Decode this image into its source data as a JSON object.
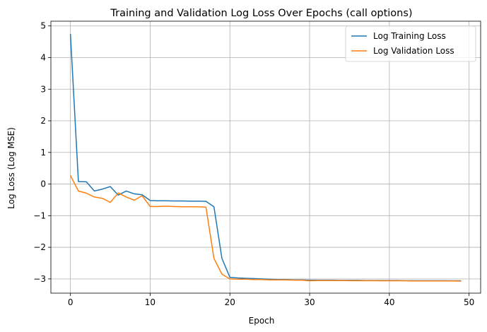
{
  "chart_data": {
    "type": "line",
    "title": "Training and Validation Log Loss Over Epochs (call options)",
    "xlabel": "Epoch",
    "ylabel": "Log Loss (Log MSE)",
    "xlim": [
      -2.45,
      51.45
    ],
    "ylim": [
      -3.45,
      5.15
    ],
    "xticks": [
      0,
      10,
      20,
      30,
      40,
      50
    ],
    "yticks": [
      -3,
      -2,
      -1,
      0,
      1,
      2,
      3,
      4,
      5
    ],
    "grid": true,
    "legend_position": "top-right",
    "x": [
      0,
      1,
      2,
      3,
      4,
      5,
      6,
      7,
      8,
      9,
      10,
      11,
      12,
      13,
      14,
      15,
      16,
      17,
      18,
      19,
      20,
      21,
      22,
      23,
      24,
      25,
      26,
      27,
      28,
      29,
      30,
      31,
      32,
      33,
      34,
      35,
      36,
      37,
      38,
      39,
      40,
      41,
      42,
      43,
      44,
      45,
      46,
      47,
      48,
      49
    ],
    "series": [
      {
        "name": "Log Training Loss",
        "color": "#1f77b4",
        "values": [
          4.75,
          0.08,
          0.07,
          -0.22,
          -0.16,
          -0.08,
          -0.35,
          -0.22,
          -0.31,
          -0.34,
          -0.52,
          -0.53,
          -0.53,
          -0.535,
          -0.535,
          -0.54,
          -0.54,
          -0.545,
          -0.72,
          -2.35,
          -2.95,
          -2.97,
          -2.98,
          -2.99,
          -3.0,
          -3.01,
          -3.02,
          -3.02,
          -3.03,
          -3.03,
          -3.04,
          -3.04,
          -3.04,
          -3.04,
          -3.045,
          -3.045,
          -3.045,
          -3.05,
          -3.05,
          -3.05,
          -3.05,
          -3.05,
          -3.055,
          -3.055,
          -3.055,
          -3.055,
          -3.055,
          -3.055,
          -3.06,
          -3.06
        ]
      },
      {
        "name": "Log Validation Loss",
        "color": "#ff7f0e",
        "values": [
          0.27,
          -0.22,
          -0.29,
          -0.41,
          -0.45,
          -0.58,
          -0.28,
          -0.41,
          -0.51,
          -0.37,
          -0.71,
          -0.71,
          -0.7,
          -0.71,
          -0.72,
          -0.72,
          -0.72,
          -0.73,
          -2.35,
          -2.85,
          -3.0,
          -3.01,
          -3.01,
          -3.02,
          -3.02,
          -3.03,
          -3.03,
          -3.03,
          -3.04,
          -3.04,
          -3.06,
          -3.05,
          -3.05,
          -3.05,
          -3.05,
          -3.055,
          -3.055,
          -3.055,
          -3.055,
          -3.06,
          -3.06,
          -3.06,
          -3.06,
          -3.065,
          -3.065,
          -3.065,
          -3.065,
          -3.065,
          -3.065,
          -3.07
        ]
      }
    ]
  }
}
